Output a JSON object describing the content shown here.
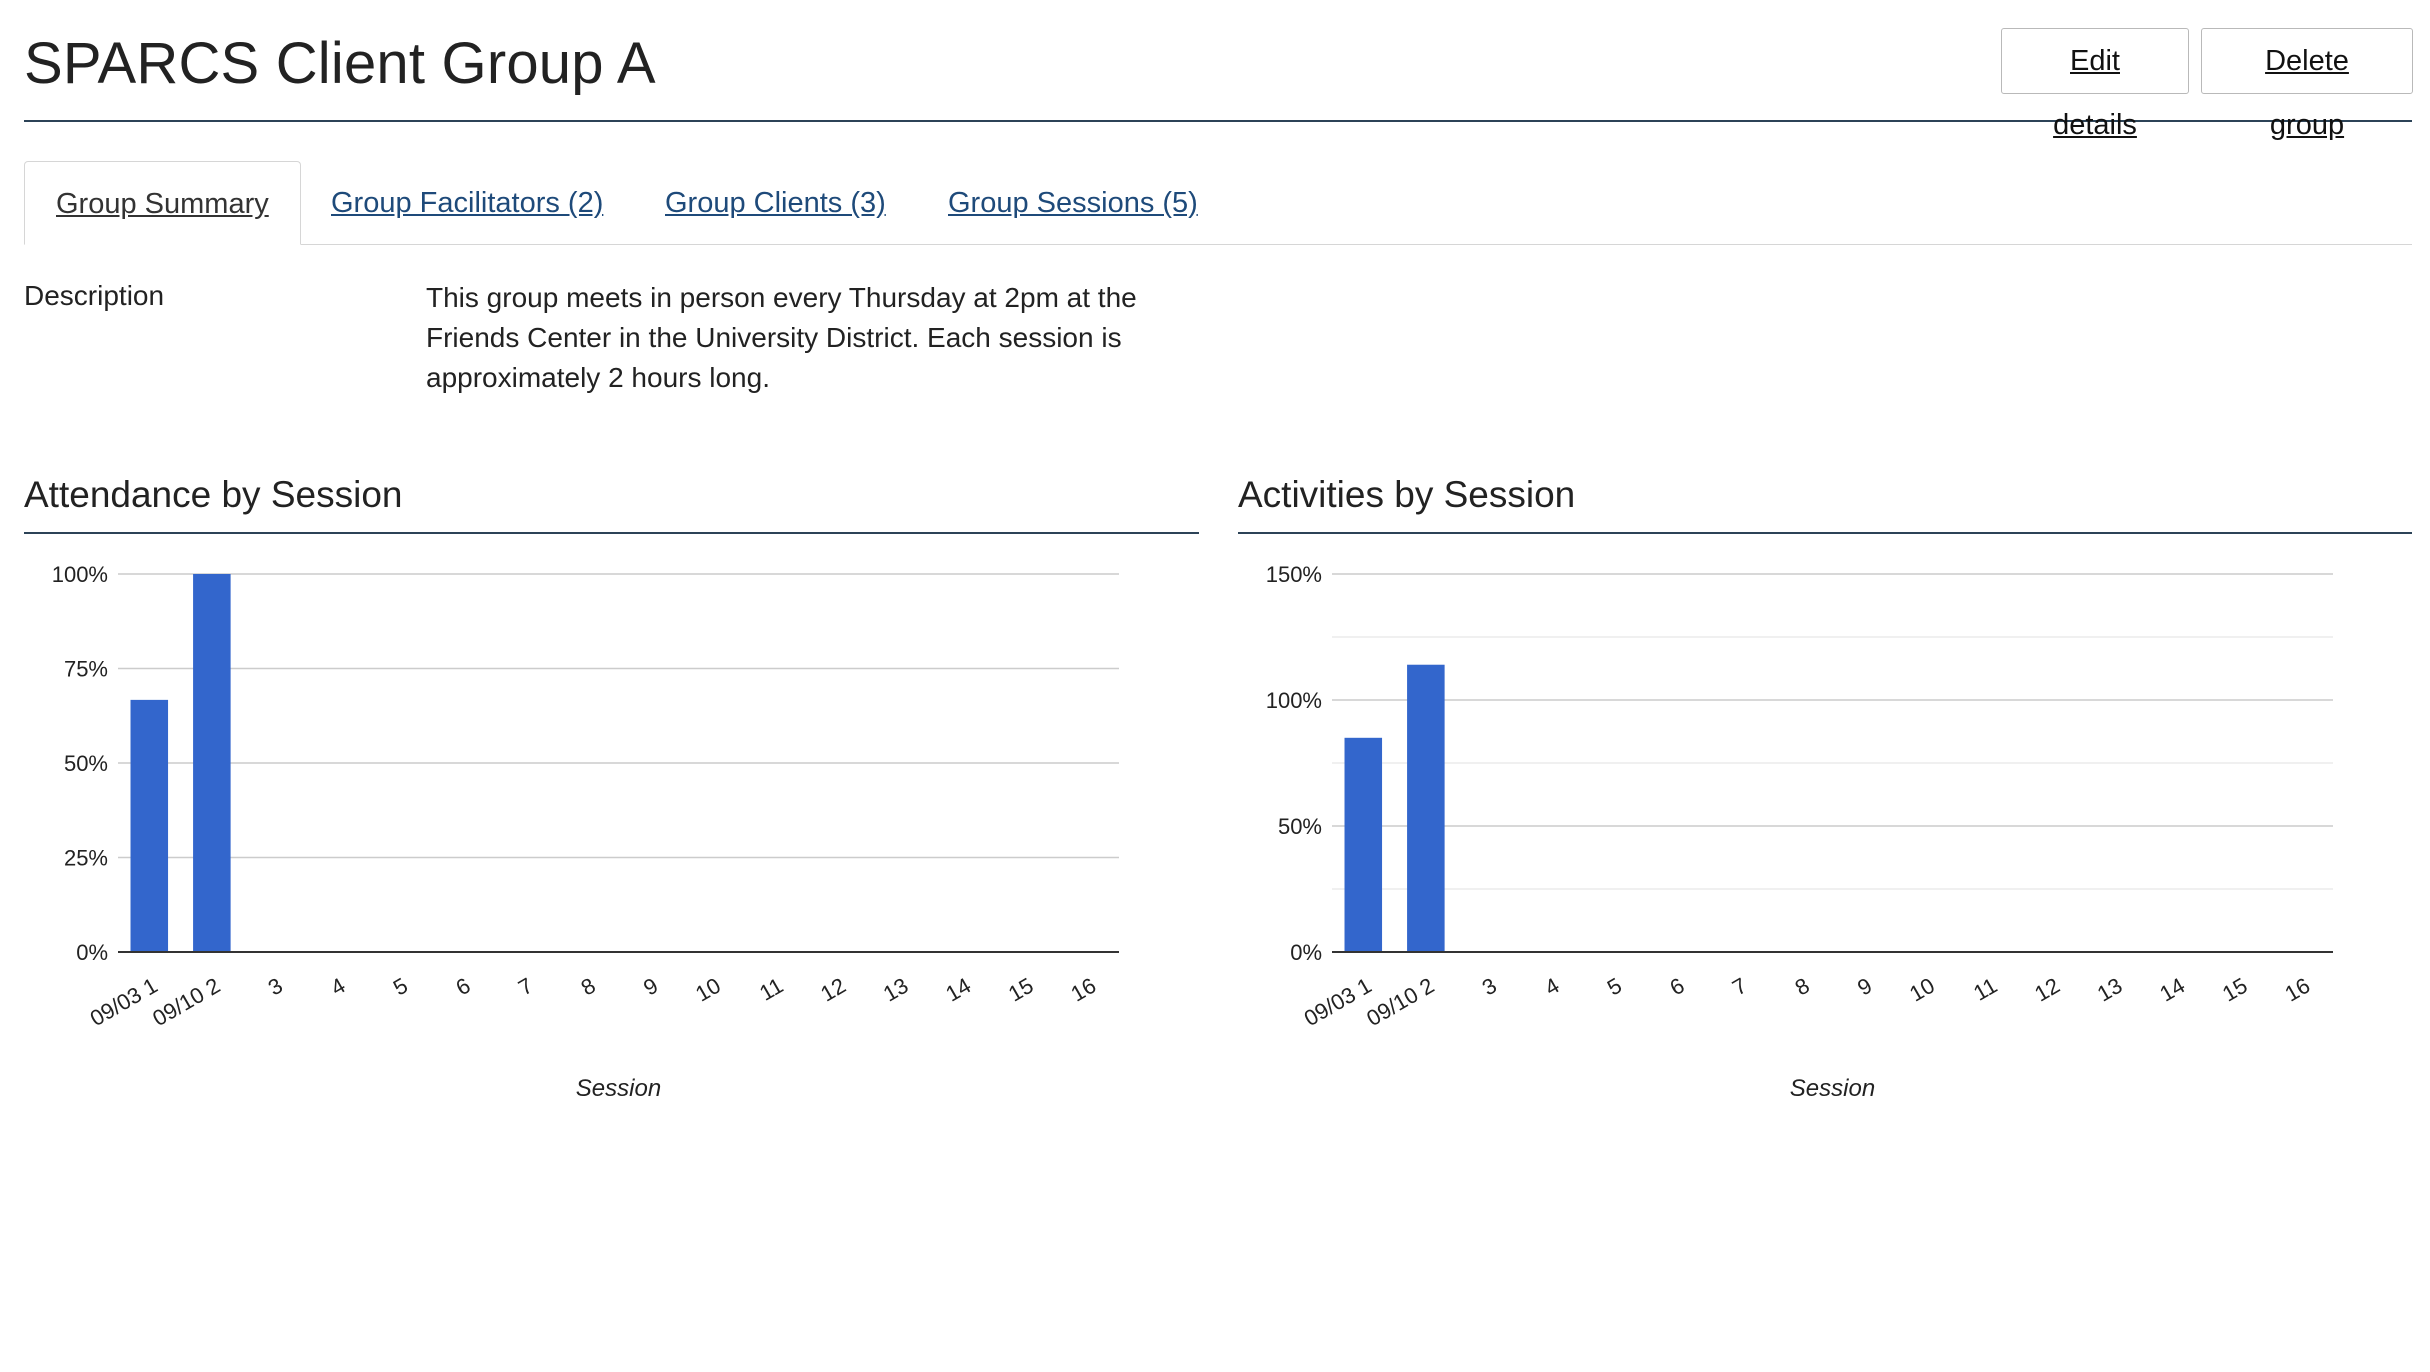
{
  "header": {
    "title": "SPARCS Client Group A",
    "edit_label": "Edit details",
    "delete_label": "Delete group"
  },
  "tabs": [
    {
      "label": "Group Summary",
      "active": true
    },
    {
      "label": "Group Facilitators (2)",
      "active": false
    },
    {
      "label": "Group Clients (3)",
      "active": false
    },
    {
      "label": "Group Sessions (5)",
      "active": false
    }
  ],
  "description": {
    "label": "Description",
    "text": "This group meets in person every Thursday at 2pm at the Friends Center in the University District. Each session is approximately 2 hours long."
  },
  "sections": {
    "attendance_title": "Attendance by Session",
    "activities_title": "Activities by Session"
  },
  "colors": {
    "bar": "#3366cc",
    "rule": "#2c4357",
    "link": "#1e4a7a"
  },
  "chart_data": [
    {
      "type": "bar",
      "title": "Attendance by Session",
      "categories": [
        "09/03 1",
        "09/10 2",
        "3",
        "4",
        "5",
        "6",
        "7",
        "8",
        "9",
        "10",
        "11",
        "12",
        "13",
        "14",
        "15",
        "16"
      ],
      "values": [
        66.7,
        100,
        null,
        null,
        null,
        null,
        null,
        null,
        null,
        null,
        null,
        null,
        null,
        null,
        null,
        null
      ],
      "yticks": [
        "0%",
        "25%",
        "50%",
        "75%",
        "100%"
      ],
      "ytick_values": [
        0,
        25,
        50,
        75,
        100
      ],
      "minor_ticks": [],
      "ylim": [
        0,
        100
      ],
      "xlabel": "Session",
      "grid": true
    },
    {
      "type": "bar",
      "title": "Activities by Session",
      "categories": [
        "09/03 1",
        "09/10 2",
        "3",
        "4",
        "5",
        "6",
        "7",
        "8",
        "9",
        "10",
        "11",
        "12",
        "13",
        "14",
        "15",
        "16"
      ],
      "values": [
        85,
        114,
        null,
        null,
        null,
        null,
        null,
        null,
        null,
        null,
        null,
        null,
        null,
        null,
        null,
        null
      ],
      "yticks": [
        "0%",
        "50%",
        "100%",
        "150%"
      ],
      "ytick_values": [
        0,
        50,
        100,
        150
      ],
      "minor_ticks": [
        25,
        75,
        125
      ],
      "ylim": [
        0,
        150
      ],
      "xlabel": "Session",
      "grid": true
    }
  ]
}
